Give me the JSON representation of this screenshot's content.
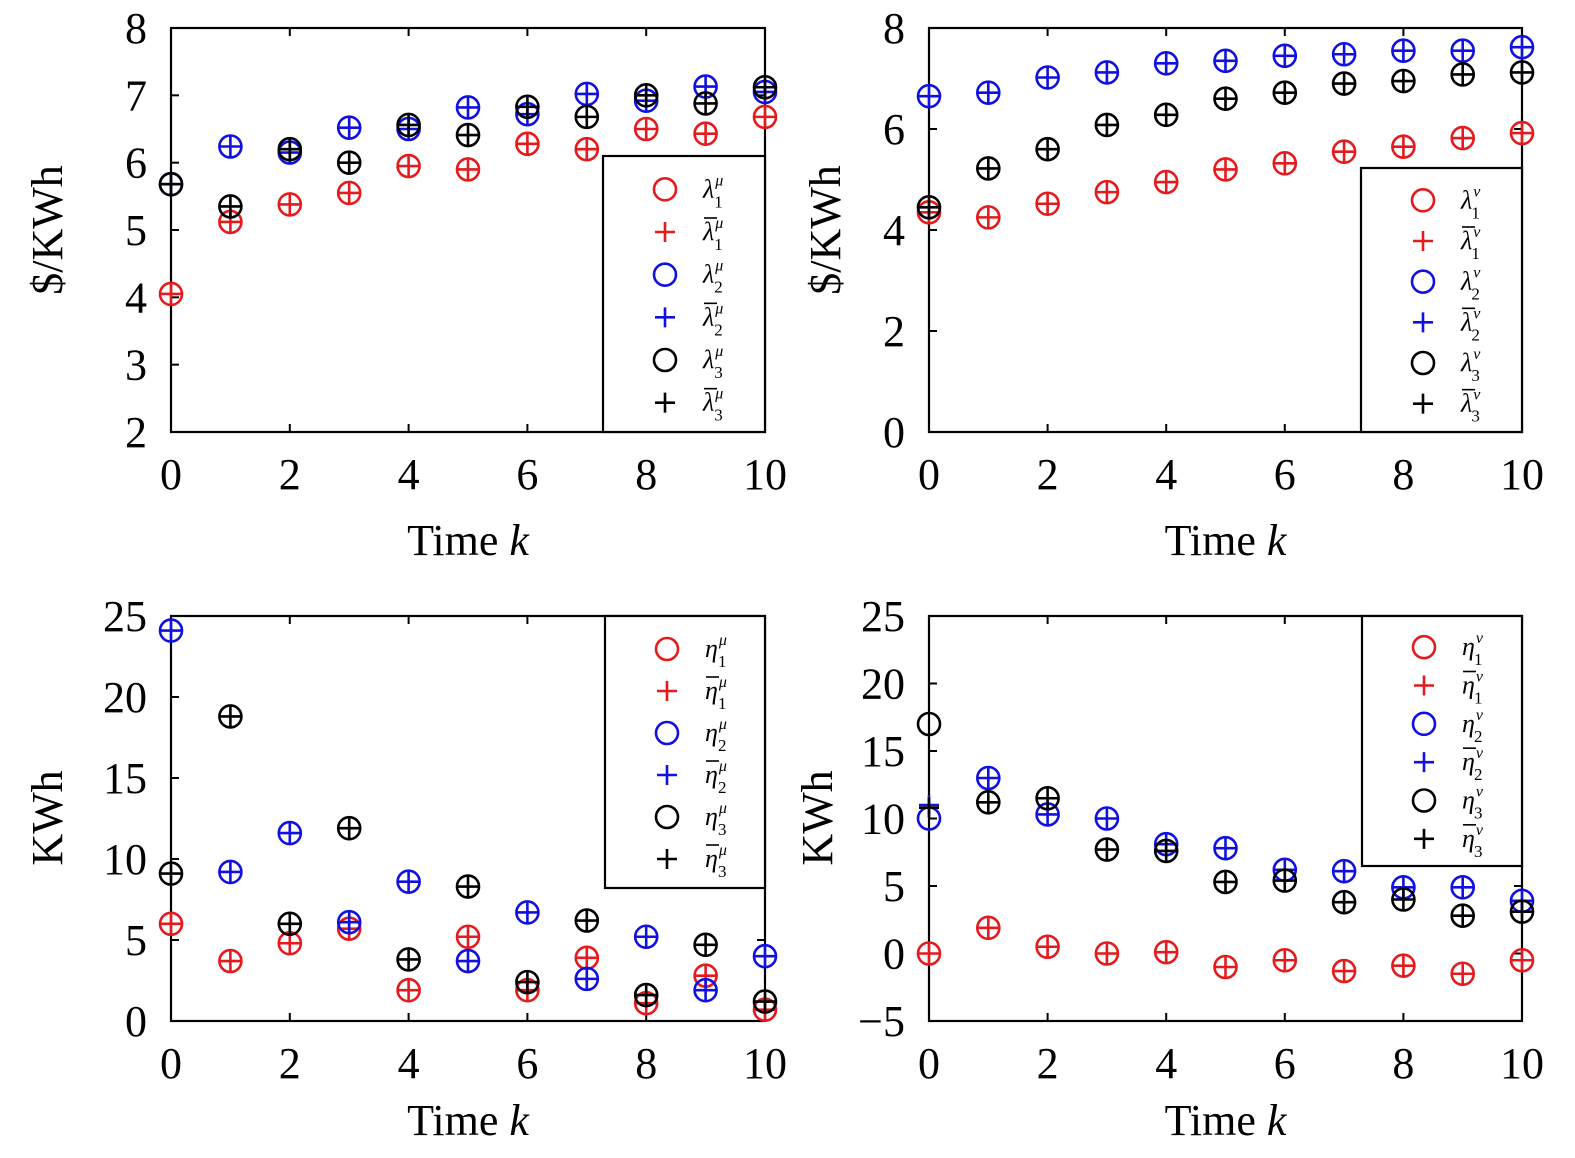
{
  "colors": {
    "series1": "#e41a1c",
    "series2": "#1010e0",
    "series3": "#000000"
  },
  "chart_data": [
    {
      "type": "scatter",
      "xlabel": "Time k",
      "ylabel": "$/KWh",
      "xlim": [
        0,
        10
      ],
      "ylim": [
        2,
        8
      ],
      "xticks": [
        0,
        2,
        4,
        6,
        8,
        10
      ],
      "yticks": [
        2,
        3,
        4,
        5,
        6,
        7,
        8
      ],
      "legend_position": "right",
      "series": [
        {
          "name": "λ1μ",
          "base": "λ",
          "sub": "1",
          "sup": "μ",
          "bar": false,
          "marker": "circle",
          "color": "#e41a1c",
          "x": [
            0,
            1,
            2,
            3,
            4,
            5,
            6,
            7,
            8,
            9,
            10
          ],
          "y": [
            4.05,
            5.12,
            5.38,
            5.55,
            5.95,
            5.9,
            6.28,
            6.2,
            6.5,
            6.43,
            6.68
          ]
        },
        {
          "name": "λ̄1μ",
          "base": "λ",
          "sub": "1",
          "sup": "μ",
          "bar": true,
          "marker": "plus",
          "color": "#e41a1c",
          "x": [
            0,
            1,
            2,
            3,
            4,
            5,
            6,
            7,
            8,
            9,
            10
          ],
          "y": [
            4.05,
            5.12,
            5.38,
            5.55,
            5.95,
            5.9,
            6.28,
            6.2,
            6.5,
            6.43,
            6.68
          ]
        },
        {
          "name": "λ2μ",
          "base": "λ",
          "sub": "2",
          "sup": "μ",
          "bar": false,
          "marker": "circle",
          "color": "#1010e0",
          "x": [
            0,
            1,
            2,
            3,
            4,
            5,
            6,
            7,
            8,
            9,
            10
          ],
          "y": [
            5.68,
            6.24,
            6.15,
            6.52,
            6.5,
            6.82,
            6.72,
            7.02,
            6.92,
            7.13,
            7.05
          ]
        },
        {
          "name": "λ̄2μ",
          "base": "λ",
          "sub": "2",
          "sup": "μ",
          "bar": true,
          "marker": "plus",
          "color": "#1010e0",
          "x": [
            0,
            1,
            2,
            3,
            4,
            5,
            6,
            7,
            8,
            9,
            10
          ],
          "y": [
            5.68,
            6.24,
            6.15,
            6.52,
            6.5,
            6.82,
            6.72,
            7.02,
            6.92,
            7.13,
            7.05
          ]
        },
        {
          "name": "λ3μ",
          "base": "λ",
          "sub": "3",
          "sup": "μ",
          "bar": false,
          "marker": "circle",
          "color": "#000000",
          "x": [
            0,
            1,
            2,
            3,
            4,
            5,
            6,
            7,
            8,
            9,
            10
          ],
          "y": [
            5.68,
            5.35,
            6.2,
            6.0,
            6.56,
            6.41,
            6.83,
            6.68,
            7.0,
            6.88,
            7.12
          ]
        },
        {
          "name": "λ̄3μ",
          "base": "λ",
          "sub": "3",
          "sup": "μ",
          "bar": true,
          "marker": "plus",
          "color": "#000000",
          "x": [
            0,
            1,
            2,
            3,
            4,
            5,
            6,
            7,
            8,
            9,
            10
          ],
          "y": [
            5.68,
            5.35,
            6.2,
            6.0,
            6.56,
            6.41,
            6.83,
            6.68,
            7.0,
            6.88,
            7.12
          ]
        }
      ]
    },
    {
      "type": "scatter",
      "xlabel": "Time k",
      "ylabel": "$/KWh",
      "xlim": [
        0,
        10
      ],
      "ylim": [
        0,
        8
      ],
      "xticks": [
        0,
        2,
        4,
        6,
        8,
        10
      ],
      "yticks": [
        0,
        2,
        4,
        6,
        8
      ],
      "legend_position": "right",
      "series": [
        {
          "name": "λ1ν",
          "base": "λ",
          "sub": "1",
          "sup": "ν",
          "bar": false,
          "marker": "circle",
          "color": "#e41a1c",
          "x": [
            0,
            1,
            2,
            3,
            4,
            5,
            6,
            7,
            8,
            9,
            10
          ],
          "y": [
            4.35,
            4.25,
            4.52,
            4.75,
            4.95,
            5.2,
            5.32,
            5.55,
            5.65,
            5.82,
            5.92
          ]
        },
        {
          "name": "λ̄1ν",
          "base": "λ",
          "sub": "1",
          "sup": "ν",
          "bar": true,
          "marker": "plus",
          "color": "#e41a1c",
          "x": [
            0,
            1,
            2,
            3,
            4,
            5,
            6,
            7,
            8,
            9,
            10
          ],
          "y": [
            4.35,
            4.25,
            4.52,
            4.75,
            4.95,
            5.2,
            5.32,
            5.55,
            5.65,
            5.82,
            5.92
          ]
        },
        {
          "name": "λ2ν",
          "base": "λ",
          "sub": "2",
          "sup": "ν",
          "bar": false,
          "marker": "circle",
          "color": "#1010e0",
          "x": [
            0,
            1,
            2,
            3,
            4,
            5,
            6,
            7,
            8,
            9,
            10
          ],
          "y": [
            6.65,
            6.72,
            7.02,
            7.12,
            7.3,
            7.35,
            7.45,
            7.48,
            7.55,
            7.55,
            7.62
          ]
        },
        {
          "name": "λ̄2ν",
          "base": "λ",
          "sub": "2",
          "sup": "ν",
          "bar": true,
          "marker": "plus",
          "color": "#1010e0",
          "x": [
            0,
            1,
            2,
            3,
            4,
            5,
            6,
            7,
            8,
            9,
            10
          ],
          "y": [
            6.65,
            6.72,
            7.02,
            7.12,
            7.3,
            7.35,
            7.45,
            7.48,
            7.55,
            7.55,
            7.62
          ]
        },
        {
          "name": "λ3ν",
          "base": "λ",
          "sub": "3",
          "sup": "ν",
          "bar": false,
          "marker": "circle",
          "color": "#000000",
          "x": [
            0,
            1,
            2,
            3,
            4,
            5,
            6,
            7,
            8,
            9,
            10
          ],
          "y": [
            4.45,
            5.22,
            5.6,
            6.08,
            6.28,
            6.6,
            6.72,
            6.9,
            6.95,
            7.08,
            7.12
          ]
        },
        {
          "name": "λ̄3ν",
          "base": "λ",
          "sub": "3",
          "sup": "ν",
          "bar": true,
          "marker": "plus",
          "color": "#000000",
          "x": [
            0,
            1,
            2,
            3,
            4,
            5,
            6,
            7,
            8,
            9,
            10
          ],
          "y": [
            4.45,
            5.22,
            5.6,
            6.08,
            6.28,
            6.6,
            6.72,
            6.9,
            6.95,
            7.08,
            7.12
          ]
        }
      ]
    },
    {
      "type": "scatter",
      "xlabel": "Time k",
      "ylabel": "KWh",
      "xlim": [
        0,
        10
      ],
      "ylim": [
        0,
        25
      ],
      "xticks": [
        0,
        2,
        4,
        6,
        8,
        10
      ],
      "yticks": [
        0,
        5,
        10,
        15,
        20,
        25
      ],
      "legend_position": "top-right",
      "series": [
        {
          "name": "η1μ",
          "base": "η",
          "sub": "1",
          "sup": "μ",
          "bar": false,
          "marker": "circle",
          "color": "#e41a1c",
          "x": [
            0,
            1,
            2,
            3,
            4,
            5,
            6,
            7,
            8,
            9,
            10
          ],
          "y": [
            6.0,
            3.7,
            4.8,
            5.7,
            1.9,
            5.2,
            1.9,
            3.9,
            1.1,
            2.8,
            0.7
          ]
        },
        {
          "name": "η̄1μ",
          "base": "η",
          "sub": "1",
          "sup": "μ",
          "bar": true,
          "marker": "plus",
          "color": "#e41a1c",
          "x": [
            0,
            1,
            2,
            3,
            4,
            5,
            6,
            7,
            8,
            9,
            10
          ],
          "y": [
            6.0,
            3.7,
            4.8,
            5.7,
            1.9,
            5.2,
            1.9,
            3.9,
            1.1,
            2.8,
            0.7
          ]
        },
        {
          "name": "η2μ",
          "base": "η",
          "sub": "2",
          "sup": "μ",
          "bar": false,
          "marker": "circle",
          "color": "#1010e0",
          "x": [
            0,
            1,
            2,
            3,
            4,
            5,
            6,
            7,
            8,
            9,
            10
          ],
          "y": [
            24.1,
            9.2,
            11.6,
            6.1,
            8.6,
            3.7,
            6.7,
            2.6,
            5.2,
            1.9,
            4.0
          ]
        },
        {
          "name": "η̄2μ",
          "base": "η",
          "sub": "2",
          "sup": "μ",
          "bar": true,
          "marker": "plus",
          "color": "#1010e0",
          "x": [
            0,
            1,
            2,
            3,
            4,
            5,
            6,
            7,
            8,
            9,
            10
          ],
          "y": [
            24.1,
            9.2,
            11.6,
            6.1,
            8.6,
            3.7,
            6.7,
            2.6,
            5.2,
            1.9,
            4.0
          ]
        },
        {
          "name": "η3μ",
          "base": "η",
          "sub": "3",
          "sup": "μ",
          "bar": false,
          "marker": "circle",
          "color": "#000000",
          "x": [
            0,
            1,
            2,
            3,
            4,
            5,
            6,
            7,
            8,
            9,
            10
          ],
          "y": [
            9.1,
            18.8,
            6.0,
            11.9,
            3.8,
            8.3,
            2.4,
            6.2,
            1.6,
            4.7,
            1.2
          ]
        },
        {
          "name": "η̄3μ",
          "base": "η",
          "sub": "3",
          "sup": "μ",
          "bar": true,
          "marker": "plus",
          "color": "#000000",
          "x": [
            0,
            1,
            2,
            3,
            4,
            5,
            6,
            7,
            8,
            9,
            10
          ],
          "y": [
            9.1,
            18.8,
            6.0,
            11.9,
            3.8,
            8.3,
            2.4,
            6.2,
            1.6,
            4.7,
            1.2
          ]
        }
      ]
    },
    {
      "type": "scatter",
      "xlabel": "Time k",
      "ylabel": "KWh",
      "xlim": [
        0,
        10
      ],
      "ylim": [
        -5,
        25
      ],
      "xticks": [
        0,
        2,
        4,
        6,
        8,
        10
      ],
      "yticks": [
        -5,
        0,
        5,
        10,
        15,
        20,
        25
      ],
      "ytick_labels": [
        "−5",
        "0",
        "5",
        "10",
        "15",
        "20",
        "25"
      ],
      "legend_position": "top-right",
      "series": [
        {
          "name": "η1ν",
          "base": "η",
          "sub": "1",
          "sup": "ν",
          "bar": false,
          "marker": "circle",
          "color": "#e41a1c",
          "x": [
            0,
            1,
            2,
            3,
            4,
            5,
            6,
            7,
            8,
            9,
            10
          ],
          "y": [
            0.0,
            1.9,
            0.5,
            0.0,
            0.1,
            -1.0,
            -0.5,
            -1.3,
            -0.9,
            -1.5,
            -0.5
          ]
        },
        {
          "name": "η̄1ν",
          "base": "η",
          "sub": "1",
          "sup": "ν",
          "bar": true,
          "marker": "plus",
          "color": "#e41a1c",
          "x": [
            0,
            1,
            2,
            3,
            4,
            5,
            6,
            7,
            8,
            9,
            10
          ],
          "y": [
            0.0,
            1.9,
            0.5,
            0.0,
            0.1,
            -1.0,
            -0.5,
            -1.3,
            -0.9,
            -1.5,
            -0.5
          ]
        },
        {
          "name": "η2ν",
          "base": "η",
          "sub": "2",
          "sup": "ν",
          "bar": false,
          "marker": "circle",
          "color": "#1010e0",
          "x": [
            0,
            1,
            2,
            3,
            4,
            5,
            6,
            7,
            8,
            9,
            10
          ],
          "y": [
            10.0,
            13.0,
            10.3,
            10.0,
            8.1,
            7.8,
            6.2,
            6.1,
            4.9,
            4.9,
            3.9
          ]
        },
        {
          "name": "η̄2ν",
          "base": "η",
          "sub": "2",
          "sup": "ν",
          "bar": true,
          "marker": "plus",
          "color": "#1010e0",
          "x": [
            0,
            1,
            2,
            3,
            4,
            5,
            6,
            7,
            8,
            9,
            10
          ],
          "y": [
            11.0,
            13.0,
            10.3,
            10.0,
            8.1,
            7.8,
            6.2,
            6.1,
            4.9,
            4.9,
            3.9
          ]
        },
        {
          "name": "η3ν",
          "base": "η",
          "sub": "3",
          "sup": "ν",
          "bar": false,
          "marker": "circle",
          "color": "#000000",
          "x": [
            0,
            1,
            2,
            3,
            4,
            5,
            6,
            7,
            8,
            9,
            10
          ],
          "y": [
            17.0,
            11.2,
            11.5,
            7.7,
            7.6,
            5.3,
            5.4,
            3.8,
            4.0,
            2.8,
            3.1
          ]
        },
        {
          "name": "η̄3ν",
          "base": "η",
          "sub": "3",
          "sup": "ν",
          "bar": true,
          "marker": "plus",
          "color": "#000000",
          "x": [
            0,
            1,
            2,
            3,
            4,
            5,
            6,
            7,
            8,
            9,
            10
          ],
          "y": [
            10.8,
            11.2,
            11.5,
            7.7,
            7.6,
            5.3,
            5.4,
            3.8,
            4.0,
            2.8,
            3.1
          ]
        }
      ]
    }
  ]
}
